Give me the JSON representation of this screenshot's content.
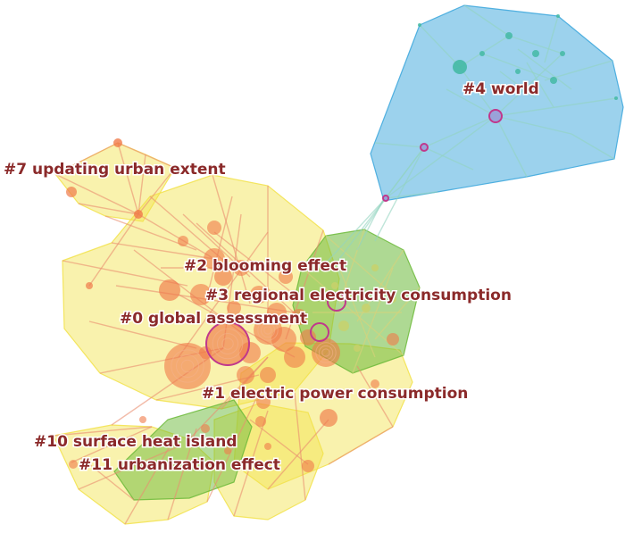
{
  "diagram": {
    "type": "co-citation cluster network",
    "clusters": [
      {
        "id": "0",
        "label": "#0 global assessment",
        "color": "#f2e24a"
      },
      {
        "id": "1",
        "label": "#1 electric power consumption",
        "color": "#f2e24a"
      },
      {
        "id": "2",
        "label": "#2 blooming effect",
        "color": "#f2e24a"
      },
      {
        "id": "3",
        "label": "#3 regional electricity consumption",
        "color": "#5fb52e"
      },
      {
        "id": "4",
        "label": "#4 world",
        "color": "#3aa6dc"
      },
      {
        "id": "7",
        "label": "#7 updating urban extent",
        "color": "#f2e24a"
      },
      {
        "id": "10",
        "label": "#10 surface heat island",
        "color": "#f2e24a"
      },
      {
        "id": "11",
        "label": "#11 urbanization effect",
        "color": "#5fb52e"
      }
    ],
    "colors": {
      "yellow_hull": "#f2e24a",
      "green_hull": "#6cba3a",
      "blue_hull": "#3aa6dc",
      "warm_node": "#f07a4a",
      "cool_node": "#3fb8a0",
      "burst_ring": "#c0388c",
      "label_text": "#8b2a2a"
    }
  }
}
